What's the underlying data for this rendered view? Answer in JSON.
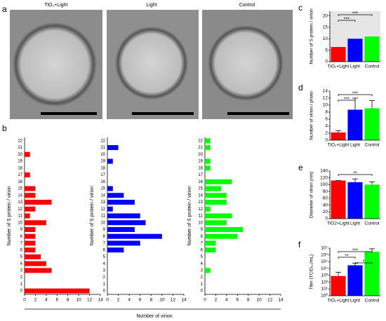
{
  "panel_labels": [
    "a",
    "b",
    "c",
    "d",
    "e",
    "f"
  ],
  "micrographs": [
    "TiO₂+Light",
    "Light",
    "Control"
  ],
  "panel_b_xlabel": "Number of virion",
  "chart_data": [
    {
      "type": "hbar",
      "ylabel": "Number of S protein / virion",
      "color": "#ff0000",
      "categories": [
        "0",
        "1",
        "2",
        "3",
        "4",
        "5",
        "6",
        "7",
        "8",
        "9",
        "10",
        "11",
        "12",
        "13",
        "14",
        "15",
        "16",
        "17",
        "18",
        "19",
        "20",
        "21",
        "22"
      ],
      "values": [
        12,
        0,
        0,
        5,
        4,
        3,
        2,
        2,
        2,
        2,
        4,
        1,
        2,
        5,
        2,
        2,
        0,
        1,
        0,
        0,
        1,
        0,
        0
      ],
      "xlim": [
        0,
        14
      ],
      "xticks": [
        0,
        2,
        4,
        6,
        8,
        10,
        12,
        14
      ]
    },
    {
      "type": "hbar",
      "ylabel": "Number of S protein / virion",
      "color": "#0000ff",
      "categories": [
        "0",
        "1",
        "2",
        "3",
        "4",
        "5",
        "6",
        "7",
        "8",
        "9",
        "10",
        "11",
        "12",
        "13",
        "14",
        "15",
        "16",
        "17",
        "18",
        "19",
        "20",
        "21",
        "22"
      ],
      "values": [
        0,
        0,
        0,
        0,
        0,
        0,
        3,
        6,
        10,
        5,
        7,
        6,
        1,
        5,
        3,
        1,
        0,
        0,
        0,
        1,
        0,
        2,
        0
      ],
      "xlim": [
        0,
        14
      ],
      "xticks": [
        0,
        2,
        4,
        6,
        8,
        10,
        12,
        14
      ]
    },
    {
      "type": "hbar",
      "ylabel": "Number of S protein / virion",
      "color": "#00ff00",
      "categories": [
        "0",
        "1",
        "2",
        "3",
        "4",
        "5",
        "6",
        "7",
        "8",
        "9",
        "10",
        "11",
        "12",
        "13",
        "14",
        "15",
        "16",
        "17",
        "18",
        "19",
        "20",
        "21",
        "22"
      ],
      "values": [
        0,
        0,
        0,
        1,
        0,
        0,
        2,
        2,
        6,
        7,
        4,
        5,
        1,
        4,
        4,
        3,
        5,
        0,
        1,
        1,
        0,
        1,
        1
      ],
      "xlim": [
        0,
        14
      ],
      "xticks": [
        0,
        2,
        4,
        6,
        8,
        10,
        12,
        14
      ]
    },
    {
      "type": "bar",
      "ylabel": "Number of S protein / virion",
      "background": "#e6e6e6",
      "categories": [
        "TiO₂+Light",
        "Light",
        "Control"
      ],
      "colors": [
        "#ff0000",
        "#0000ff",
        "#00ff00"
      ],
      "values": [
        6.4,
        10,
        11
      ],
      "ylim": [
        0,
        22
      ],
      "yticks": [
        0,
        5,
        10,
        15,
        20
      ],
      "annotations": [
        {
          "text": "***",
          "between": [
            0,
            2
          ]
        },
        {
          "text": "***",
          "between": [
            0,
            1
          ]
        }
      ]
    },
    {
      "type": "bar",
      "ylabel": "Number of virion / photo",
      "categories": [
        "TiO₂+Light",
        "Light",
        "Control"
      ],
      "colors": [
        "#ff0000",
        "#0000ff",
        "#00ff00"
      ],
      "values": [
        2.2,
        8.7,
        9.1
      ],
      "errors": [
        0.5,
        3.3,
        2.2
      ],
      "ylim": [
        0,
        14
      ],
      "yticks": [
        0,
        2,
        4,
        6,
        8,
        10,
        12,
        14
      ],
      "annotations": [
        {
          "text": "***",
          "between": [
            0,
            2
          ]
        },
        {
          "text": "***",
          "between": [
            0,
            1
          ]
        }
      ]
    },
    {
      "type": "bar",
      "ylabel": "Diameter of virion (nm)",
      "categories": [
        "TiO2+Light",
        "Light",
        "Control"
      ],
      "colors": [
        "#ff0000",
        "#0000ff",
        "#00ff00"
      ],
      "values": [
        112,
        107,
        100
      ],
      "errors": [
        0,
        10,
        8
      ],
      "ylim": [
        0,
        140
      ],
      "yticks": [
        0,
        20,
        40,
        60,
        80,
        100,
        120,
        140
      ],
      "annotations": [
        {
          "text": "**",
          "between": [
            0,
            2
          ]
        }
      ]
    },
    {
      "type": "bar",
      "ylabel": "Titer (TCID₅₀/mL)",
      "log_scale": true,
      "categories": [
        "TiO₂+Light",
        "Light",
        "Control"
      ],
      "colors": [
        "#ff0000",
        "#0000ff",
        "#00ff00"
      ],
      "values": [
        800,
        30000,
        3000000
      ],
      "errors": [
        2000,
        30000,
        5000000
      ],
      "ylim": [
        1,
        10000000
      ],
      "yticks": [
        {
          "value": 1,
          "label": "10⁰"
        },
        {
          "value": 10,
          "label": "10¹"
        },
        {
          "value": 100,
          "label": "10²"
        },
        {
          "value": 1000,
          "label": "10³"
        },
        {
          "value": 10000,
          "label": "10⁴"
        },
        {
          "value": 100000,
          "label": "10⁵"
        },
        {
          "value": 1000000,
          "label": "10⁶"
        },
        {
          "value": 10000000,
          "label": "10⁷"
        }
      ],
      "annotations": [
        {
          "text": "***",
          "between": [
            0,
            2
          ]
        },
        {
          "text": "**",
          "between": [
            0,
            1
          ]
        },
        {
          "text": "*",
          "between": [
            1,
            2
          ]
        }
      ]
    }
  ]
}
